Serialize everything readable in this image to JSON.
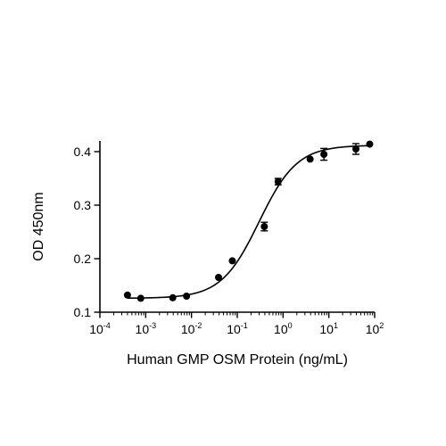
{
  "chart_data": {
    "type": "scatter",
    "xlabel": "Human GMP OSM Protein (ng/mL)",
    "ylabel": "OD 450nm",
    "x_scale": "log",
    "xlim": [
      0.0001,
      100
    ],
    "ylim": [
      0.1,
      0.42
    ],
    "x_ticks": [
      {
        "base": "10",
        "exp": "-4",
        "value": 0.0001
      },
      {
        "base": "10",
        "exp": "-3",
        "value": 0.001
      },
      {
        "base": "10",
        "exp": "-2",
        "value": 0.01
      },
      {
        "base": "10",
        "exp": "-1",
        "value": 0.1
      },
      {
        "base": "10",
        "exp": "0",
        "value": 1
      },
      {
        "base": "10",
        "exp": "1",
        "value": 10
      },
      {
        "base": "10",
        "exp": "2",
        "value": 100
      }
    ],
    "y_ticks": [
      {
        "label": "0.1",
        "value": 0.1
      },
      {
        "label": "0.2",
        "value": 0.2
      },
      {
        "label": "0.3",
        "value": 0.3
      },
      {
        "label": "0.4",
        "value": 0.4
      }
    ],
    "grid": false,
    "series": [
      {
        "points": [
          {
            "x": 0.0004,
            "y": 0.132,
            "err": 0.0
          },
          {
            "x": 0.00078,
            "y": 0.126,
            "err": 0.0
          },
          {
            "x": 0.0039,
            "y": 0.127,
            "err": 0.0
          },
          {
            "x": 0.0078,
            "y": 0.13,
            "err": 0.0
          },
          {
            "x": 0.039,
            "y": 0.165,
            "err": 0.0
          },
          {
            "x": 0.078,
            "y": 0.196,
            "err": 0.0
          },
          {
            "x": 0.39,
            "y": 0.26,
            "err": 0.008
          },
          {
            "x": 0.78,
            "y": 0.344,
            "err": 0.006
          },
          {
            "x": 3.9,
            "y": 0.386,
            "err": 0.0
          },
          {
            "x": 7.8,
            "y": 0.395,
            "err": 0.011
          },
          {
            "x": 39,
            "y": 0.405,
            "err": 0.01
          },
          {
            "x": 78,
            "y": 0.414,
            "err": 0.0
          }
        ]
      }
    ],
    "fit": {
      "model": "4PL",
      "bottom": 0.126,
      "top": 0.412,
      "ec50": 0.3,
      "hill": 1.05,
      "x_range": [
        0.0004,
        78
      ]
    }
  }
}
